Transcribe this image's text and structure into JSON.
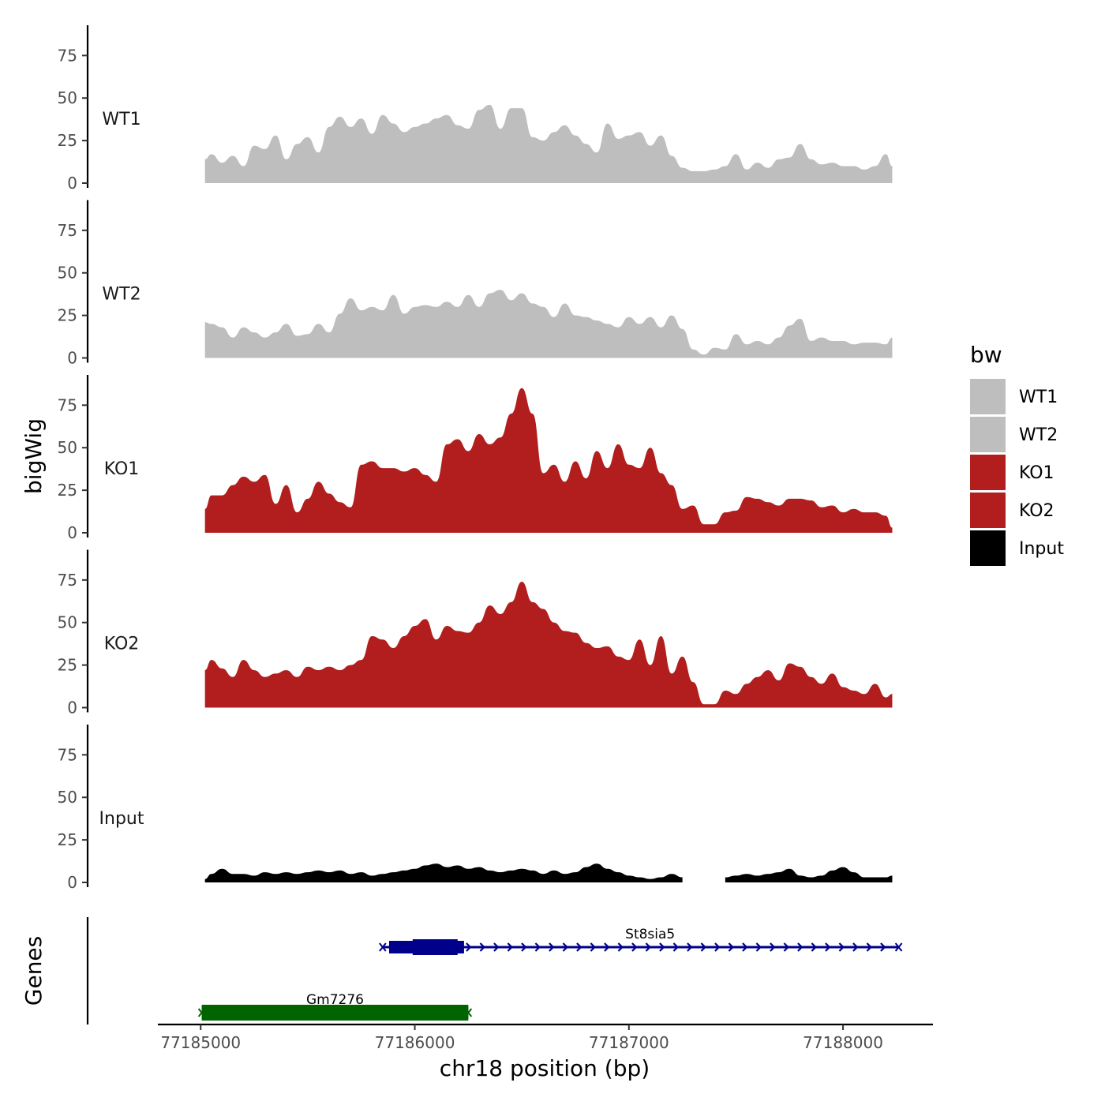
{
  "chart_data": {
    "type": "area",
    "title": "",
    "ylabel": "bigWig",
    "xlabel": "chr18 position (bp)",
    "genes_axis_label": "Genes",
    "ylim": [
      0,
      90
    ],
    "y_ticks": [
      0,
      25,
      50,
      75
    ],
    "xlim": [
      77184800,
      77188420
    ],
    "x_ticks": [
      77185000,
      77186000,
      77187000,
      77188000
    ],
    "x_tick_labels": [
      "77185000",
      "77186000",
      "77187000",
      "77188000"
    ],
    "legend": {
      "title": "bw",
      "position": "right",
      "entries": [
        {
          "label": "WT1",
          "color": "#bebebe"
        },
        {
          "label": "WT2",
          "color": "#bebebe"
        },
        {
          "label": "KO1",
          "color": "#b21e1e"
        },
        {
          "label": "KO2",
          "color": "#b21e1e"
        },
        {
          "label": "Input",
          "color": "#000000"
        }
      ]
    },
    "series": [
      {
        "name": "WT1",
        "color": "#bebebe",
        "x": [
          77185020,
          77185050,
          77185100,
          77185150,
          77185200,
          77185250,
          77185300,
          77185350,
          77185400,
          77185450,
          77185500,
          77185550,
          77185600,
          77185650,
          77185700,
          77185750,
          77185800,
          77185850,
          77185900,
          77185950,
          77186000,
          77186050,
          77186100,
          77186150,
          77186200,
          77186250,
          77186300,
          77186350,
          77186400,
          77186450,
          77186500,
          77186550,
          77186600,
          77186650,
          77186700,
          77186750,
          77186800,
          77186850,
          77186900,
          77186950,
          77187000,
          77187050,
          77187100,
          77187150,
          77187200,
          77187250,
          77187300,
          77187350,
          77187400,
          77187450,
          77187500,
          77187550,
          77187600,
          77187650,
          77187700,
          77187750,
          77187800,
          77187850,
          77187900,
          77187950,
          77188000,
          77188050,
          77188100,
          77188150,
          77188200,
          77188230
        ],
        "values": [
          14,
          17,
          12,
          16,
          10,
          22,
          20,
          28,
          14,
          23,
          27,
          18,
          33,
          39,
          33,
          38,
          29,
          40,
          35,
          30,
          33,
          35,
          38,
          40,
          34,
          32,
          43,
          46,
          32,
          44,
          44,
          27,
          25,
          30,
          34,
          28,
          23,
          18,
          35,
          26,
          28,
          30,
          22,
          28,
          16,
          9,
          7,
          7,
          8,
          10,
          17,
          8,
          12,
          9,
          14,
          15,
          23,
          14,
          11,
          12,
          10,
          10,
          8,
          10,
          17,
          10
        ]
      },
      {
        "name": "WT2",
        "color": "#bebebe",
        "x": [
          77185020,
          77185050,
          77185100,
          77185150,
          77185200,
          77185250,
          77185300,
          77185350,
          77185400,
          77185450,
          77185500,
          77185550,
          77185600,
          77185650,
          77185700,
          77185750,
          77185800,
          77185850,
          77185900,
          77185950,
          77186000,
          77186050,
          77186100,
          77186150,
          77186200,
          77186250,
          77186300,
          77186350,
          77186400,
          77186450,
          77186500,
          77186550,
          77186600,
          77186650,
          77186700,
          77186750,
          77186800,
          77186850,
          77186900,
          77186950,
          77187000,
          77187050,
          77187100,
          77187150,
          77187200,
          77187250,
          77187300,
          77187350,
          77187400,
          77187450,
          77187500,
          77187550,
          77187600,
          77187650,
          77187700,
          77187750,
          77187800,
          77187850,
          77187900,
          77187950,
          77188000,
          77188050,
          77188100,
          77188150,
          77188200,
          77188230
        ],
        "values": [
          21,
          20,
          18,
          12,
          18,
          15,
          12,
          15,
          20,
          13,
          14,
          20,
          15,
          26,
          35,
          28,
          30,
          28,
          37,
          26,
          30,
          31,
          30,
          33,
          30,
          37,
          30,
          38,
          40,
          34,
          38,
          32,
          30,
          24,
          32,
          25,
          24,
          22,
          20,
          18,
          24,
          20,
          24,
          18,
          25,
          17,
          5,
          2,
          6,
          5,
          14,
          8,
          10,
          8,
          12,
          19,
          23,
          10,
          12,
          10,
          10,
          8,
          9,
          9,
          8,
          12
        ]
      },
      {
        "name": "KO1",
        "color": "#b21e1e",
        "x": [
          77185020,
          77185050,
          77185100,
          77185150,
          77185200,
          77185250,
          77185300,
          77185350,
          77185400,
          77185450,
          77185500,
          77185550,
          77185600,
          77185650,
          77185700,
          77185750,
          77185800,
          77185850,
          77185900,
          77185950,
          77186000,
          77186050,
          77186100,
          77186150,
          77186200,
          77186250,
          77186300,
          77186350,
          77186400,
          77186450,
          77186500,
          77186550,
          77186600,
          77186650,
          77186700,
          77186750,
          77186800,
          77186850,
          77186900,
          77186950,
          77187000,
          77187050,
          77187100,
          77187150,
          77187200,
          77187250,
          77187300,
          77187350,
          77187400,
          77187450,
          77187500,
          77187550,
          77187600,
          77187650,
          77187700,
          77187750,
          77187800,
          77187850,
          77187900,
          77187950,
          77188000,
          77188050,
          77188100,
          77188150,
          77188200,
          77188230
        ],
        "values": [
          14,
          22,
          22,
          28,
          33,
          30,
          34,
          17,
          28,
          12,
          20,
          30,
          23,
          18,
          15,
          40,
          42,
          38,
          38,
          36,
          38,
          34,
          30,
          52,
          55,
          48,
          58,
          52,
          56,
          70,
          85,
          70,
          35,
          40,
          30,
          42,
          32,
          48,
          38,
          52,
          40,
          38,
          50,
          35,
          28,
          14,
          16,
          5,
          5,
          12,
          13,
          21,
          20,
          18,
          16,
          20,
          20,
          19,
          15,
          16,
          12,
          14,
          12,
          12,
          10,
          3
        ]
      },
      {
        "name": "KO2",
        "color": "#b21e1e",
        "x": [
          77185020,
          77185050,
          77185100,
          77185150,
          77185200,
          77185250,
          77185300,
          77185350,
          77185400,
          77185450,
          77185500,
          77185550,
          77185600,
          77185650,
          77185700,
          77185750,
          77185800,
          77185850,
          77185900,
          77185950,
          77186000,
          77186050,
          77186100,
          77186150,
          77186200,
          77186250,
          77186300,
          77186350,
          77186400,
          77186450,
          77186500,
          77186550,
          77186600,
          77186650,
          77186700,
          77186750,
          77186800,
          77186850,
          77186900,
          77186950,
          77187000,
          77187050,
          77187100,
          77187150,
          77187200,
          77187250,
          77187300,
          77187350,
          77187400,
          77187450,
          77187500,
          77187550,
          77187600,
          77187650,
          77187700,
          77187750,
          77187800,
          77187850,
          77187900,
          77187950,
          77188000,
          77188050,
          77188100,
          77188150,
          77188200,
          77188230
        ],
        "values": [
          22,
          28,
          23,
          18,
          28,
          22,
          18,
          20,
          22,
          18,
          24,
          22,
          24,
          22,
          25,
          28,
          42,
          40,
          35,
          42,
          48,
          52,
          40,
          48,
          45,
          44,
          50,
          60,
          55,
          62,
          74,
          62,
          58,
          50,
          45,
          44,
          38,
          35,
          36,
          30,
          28,
          40,
          25,
          42,
          20,
          30,
          15,
          2,
          2,
          10,
          8,
          14,
          18,
          22,
          16,
          26,
          24,
          18,
          14,
          20,
          12,
          10,
          8,
          14,
          6,
          8
        ]
      },
      {
        "name": "Input",
        "color": "#000000",
        "x": [
          77185020,
          77185050,
          77185100,
          77185150,
          77185200,
          77185250,
          77185300,
          77185350,
          77185400,
          77185450,
          77185500,
          77185550,
          77185600,
          77185650,
          77185700,
          77185750,
          77185800,
          77185850,
          77185900,
          77185950,
          77186000,
          77186050,
          77186100,
          77186150,
          77186200,
          77186250,
          77186300,
          77186350,
          77186400,
          77186450,
          77186500,
          77186550,
          77186600,
          77186650,
          77186700,
          77186750,
          77186800,
          77186850,
          77186900,
          77186950,
          77187000,
          77187050,
          77187100,
          77187150,
          77187200,
          77187250,
          77187300,
          77187350,
          77187400,
          77187450,
          77187500,
          77187550,
          77187600,
          77187650,
          77187700,
          77187750,
          77187800,
          77187850,
          77187900,
          77187950,
          77188000,
          77188050,
          77188100,
          77188150,
          77188200,
          77188230
        ],
        "values": [
          2,
          5,
          8,
          5,
          5,
          4,
          6,
          5,
          6,
          5,
          6,
          7,
          6,
          7,
          5,
          6,
          4,
          5,
          6,
          7,
          8,
          10,
          11,
          9,
          10,
          8,
          9,
          7,
          6,
          7,
          8,
          7,
          5,
          7,
          5,
          6,
          9,
          11,
          8,
          6,
          4,
          3,
          2,
          3,
          5,
          3,
          null,
          null,
          null,
          3,
          4,
          5,
          4,
          5,
          6,
          8,
          4,
          3,
          4,
          7,
          9,
          6,
          3,
          3,
          3,
          4
        ]
      }
    ],
    "genes": [
      {
        "name": "St8sia5",
        "color": "#00008b",
        "strand": "+",
        "start": 77185850,
        "end": 77188260,
        "cds_start": 77185880,
        "cds_end": 77186230,
        "thick_start": 77185990,
        "thick_end": 77186200
      },
      {
        "name": "Gm7276",
        "color": "#006400",
        "strand": "+",
        "start": 77185005,
        "end": 77186250,
        "cds_start": 77185005,
        "cds_end": 77186250,
        "thick_start": 77185005,
        "thick_end": 77186250
      }
    ]
  }
}
